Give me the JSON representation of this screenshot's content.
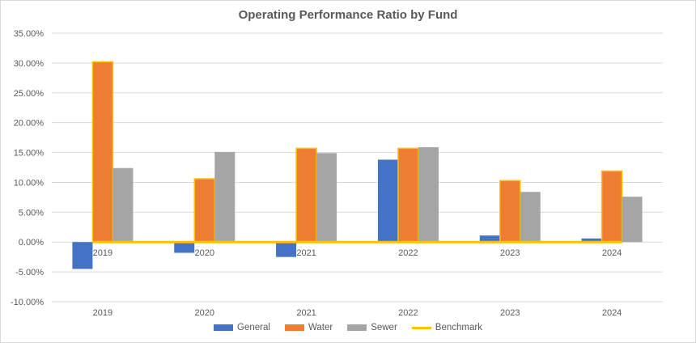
{
  "chart_data": {
    "type": "bar",
    "title": "Operating Performance Ratio by Fund",
    "xlabel": "",
    "ylabel": "",
    "categories": [
      "2019",
      "2020",
      "2021",
      "2022",
      "2023",
      "2024"
    ],
    "ylim": [
      -10,
      35
    ],
    "ytick_step": 5,
    "ytick_labels": [
      "35.00%",
      "30.00%",
      "25.00%",
      "20.00%",
      "15.00%",
      "10.00%",
      "5.00%",
      "0.00%",
      "-5.00%",
      "-10.00%"
    ],
    "grid": true,
    "legend_position": "bottom",
    "series": [
      {
        "name": "General",
        "kind": "bar",
        "color": "#4472c4",
        "values": [
          -4.5,
          -1.8,
          -2.5,
          13.8,
          1.1,
          0.6
        ]
      },
      {
        "name": "Water",
        "kind": "bar",
        "color": "#ed7d31",
        "outline": "#ffc000",
        "values": [
          30.2,
          10.6,
          15.7,
          15.7,
          10.3,
          11.9
        ]
      },
      {
        "name": "Sewer",
        "kind": "bar",
        "color": "#a5a5a5",
        "values": [
          12.4,
          15.1,
          14.9,
          15.9,
          8.4,
          7.6
        ]
      },
      {
        "name": "Benchmark",
        "kind": "line",
        "color": "#ffc000",
        "values": [
          0,
          0,
          0,
          0,
          0,
          0
        ]
      }
    ]
  }
}
